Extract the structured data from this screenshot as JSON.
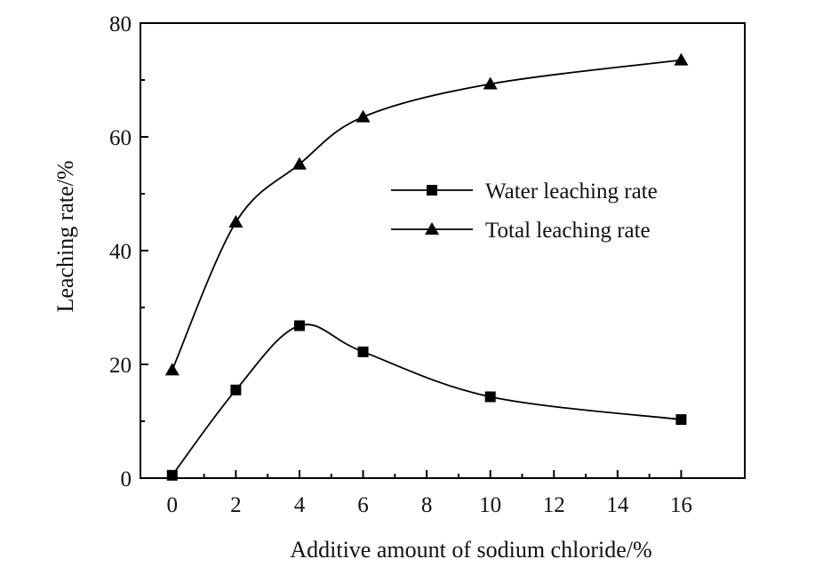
{
  "chart_data": {
    "type": "line",
    "xlabel": "Additive amount of sodium chloride/%",
    "ylabel": "Leaching rate/%",
    "xlim": [
      -1,
      18
    ],
    "ylim": [
      0,
      80
    ],
    "xticks": [
      0,
      2,
      4,
      6,
      8,
      10,
      12,
      14,
      16
    ],
    "yticks": [
      0,
      20,
      40,
      60,
      80
    ],
    "grid": false,
    "legend_position": "center-right",
    "x": [
      0,
      2,
      4,
      6,
      10,
      16
    ],
    "series": [
      {
        "name": "Water leaching rate",
        "marker": "square",
        "values": [
          0.5,
          15.5,
          26.8,
          22.2,
          14.3,
          10.3
        ]
      },
      {
        "name": "Total leaching rate",
        "marker": "triangle",
        "values": [
          19.0,
          45.0,
          55.2,
          63.5,
          69.3,
          73.5
        ]
      }
    ]
  }
}
